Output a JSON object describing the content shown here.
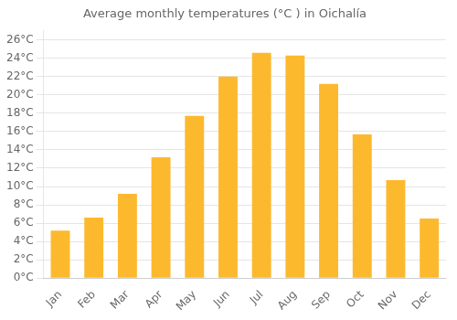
{
  "chart_data": {
    "type": "bar",
    "title": "Average monthly temperatures (°C ) in Oichalía",
    "categories": [
      "Jan",
      "Feb",
      "Mar",
      "Apr",
      "May",
      "Jun",
      "Jul",
      "Aug",
      "Sep",
      "Oct",
      "Nov",
      "Dec"
    ],
    "values": [
      5.2,
      6.6,
      9.2,
      13.2,
      17.7,
      22.0,
      24.6,
      24.3,
      21.2,
      15.7,
      10.7,
      6.5
    ],
    "color": "#FDB92E",
    "ylim": [
      0,
      27
    ],
    "yticks": [
      {
        "value": 0,
        "label": "0°C"
      },
      {
        "value": 2,
        "label": "2°C"
      },
      {
        "value": 4,
        "label": "4°C"
      },
      {
        "value": 6,
        "label": "6°C"
      },
      {
        "value": 8,
        "label": "8°C"
      },
      {
        "value": 10,
        "label": "10°C"
      },
      {
        "value": 12,
        "label": "12°C"
      },
      {
        "value": 14,
        "label": "14°C"
      },
      {
        "value": 16,
        "label": "16°C"
      },
      {
        "value": 18,
        "label": "18°C"
      },
      {
        "value": 20,
        "label": "20°C"
      },
      {
        "value": 22,
        "label": "22°C"
      },
      {
        "value": 24,
        "label": "24°C"
      },
      {
        "value": 26,
        "label": "26°C"
      }
    ],
    "grid": true
  }
}
